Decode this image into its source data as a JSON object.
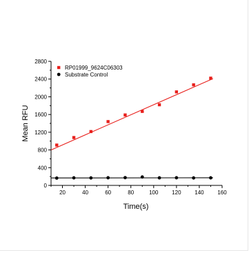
{
  "chart_data": {
    "type": "scatter",
    "xlabel": "Time(s)",
    "ylabel": "Mean RFU",
    "xlim": [
      10,
      160
    ],
    "ylim": [
      0,
      2800
    ],
    "x_ticks": [
      20,
      40,
      60,
      80,
      100,
      120,
      140,
      160
    ],
    "y_ticks": [
      0,
      400,
      800,
      1200,
      1600,
      2000,
      2400,
      2800
    ],
    "legend_position": "top-left",
    "grid": false,
    "series": [
      {
        "name": "RP01999_9624C06303",
        "color": "#e8201c",
        "marker": "square",
        "x": [
          15,
          30,
          45,
          60,
          75,
          90,
          105,
          120,
          135,
          150
        ],
        "y": [
          910,
          1080,
          1215,
          1440,
          1590,
          1670,
          1820,
          2110,
          2270,
          2420
        ],
        "fit": [
          [
            10,
            800
          ],
          [
            152,
            2410
          ]
        ]
      },
      {
        "name": "Substrate Control",
        "color": "#000000",
        "marker": "circle",
        "x": [
          15,
          30,
          45,
          60,
          75,
          90,
          105,
          120,
          135,
          150
        ],
        "y": [
          165,
          170,
          168,
          172,
          175,
          190,
          170,
          172,
          168,
          170
        ],
        "fit": [
          [
            10,
            168
          ],
          [
            152,
            172
          ]
        ]
      }
    ]
  }
}
